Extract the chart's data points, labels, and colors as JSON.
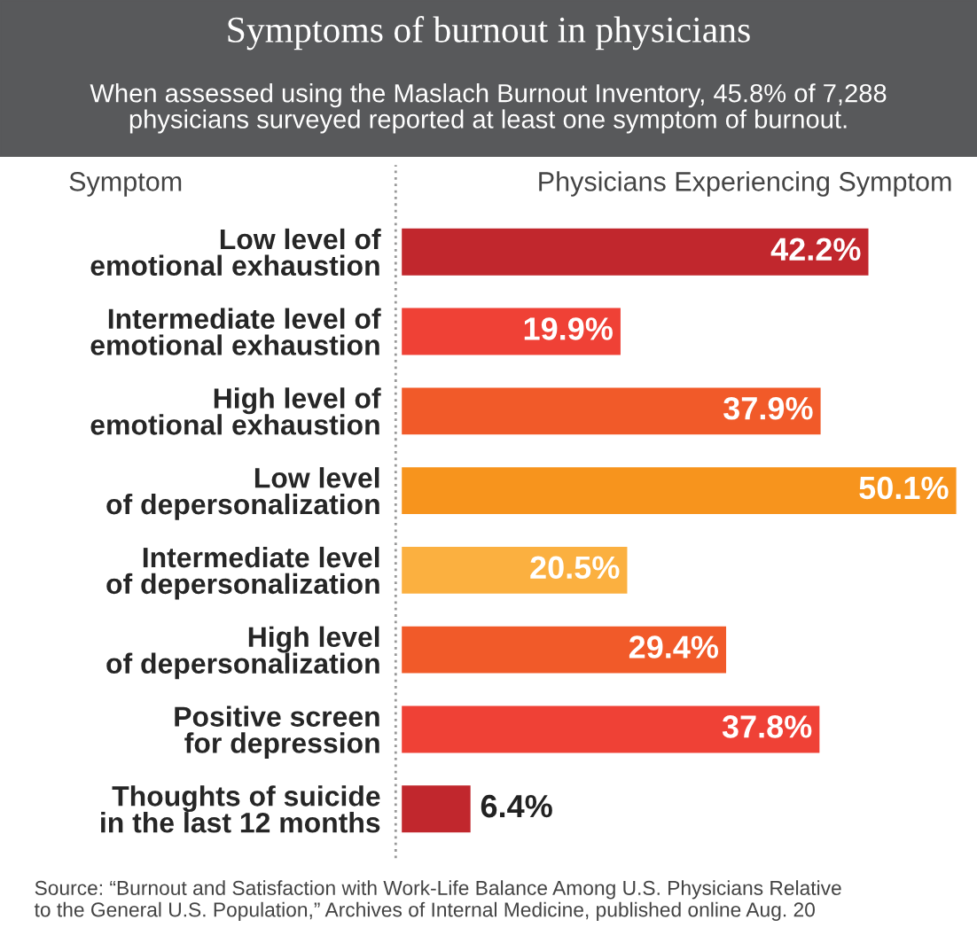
{
  "chart_data": {
    "type": "bar",
    "orientation": "horizontal",
    "title": "Symptoms of burnout in physicians",
    "subtitle": "When assessed using the Maslach Burnout Inventory, 45.8% of 7,288\nphysicians surveyed reported at least one symptom of burnout.",
    "categories": [
      "Low level of\nemotional exhaustion",
      "Intermediate level of\nemotional exhaustion",
      "High level of\nemotional exhaustion",
      "Low level\nof depersonalization",
      "Intermediate level\nof depersonalization",
      "High level\nof depersonalization",
      "Positive screen\nfor depression",
      "Thoughts of suicide\nin the last 12 months"
    ],
    "values": [
      42.2,
      19.9,
      37.9,
      50.1,
      20.5,
      29.4,
      37.8,
      6.4
    ],
    "colors": [
      "#c1272d",
      "#ef4136",
      "#f15a29",
      "#f7941d",
      "#fbb040",
      "#f15a29",
      "#ef4136",
      "#c1272d"
    ],
    "value_labels": [
      "42.2%",
      "19.9%",
      "37.9%",
      "50.1%",
      "20.5%",
      "29.4%",
      "37.8%",
      "6.4%"
    ],
    "annotations": [
      "Symptom",
      "Physicians Experiencing Symptom",
      "Source: “Burnout and Satisfaction with Work-Life Balance Among U.S. Physicians Relative\nto the General U.S. Population,” Archives of Internal Medicine, published online Aug. 20"
    ],
    "grid": false,
    "legend": false,
    "tick_labels": "y"
  }
}
